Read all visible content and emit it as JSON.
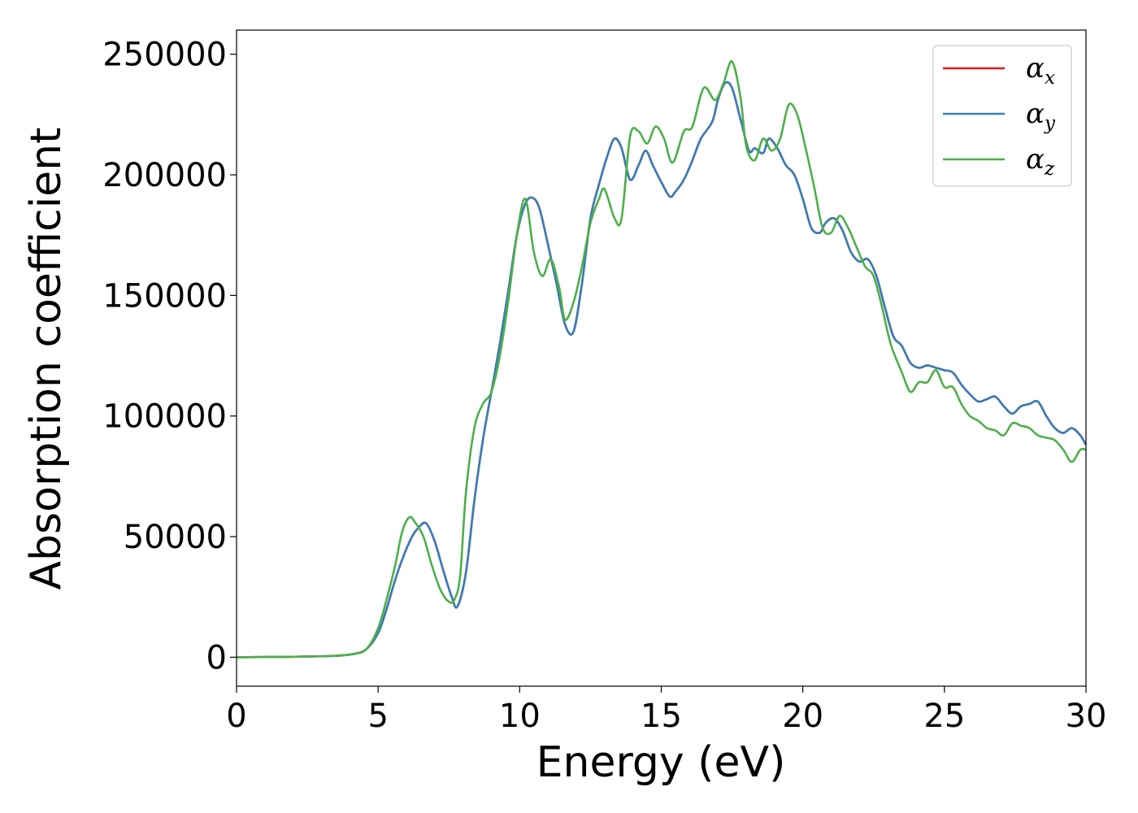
{
  "chart_data": {
    "type": "line",
    "xlabel": "Energy (eV)",
    "ylabel": "Absorption coefficient",
    "xlim": [
      0,
      30
    ],
    "ylim": [
      -12000,
      260000
    ],
    "x_ticks": [
      "0",
      "5",
      "10",
      "15",
      "20",
      "25",
      "30"
    ],
    "y_ticks": [
      "0",
      "50000",
      "100000",
      "150000",
      "200000",
      "250000"
    ],
    "grid": false,
    "legend_position": "top-right",
    "legend": [
      {
        "symbol": "α",
        "sub": "x",
        "color": "#e41a1c"
      },
      {
        "symbol": "α",
        "sub": "y",
        "color": "#377eb8"
      },
      {
        "symbol": "α",
        "sub": "z",
        "color": "#4daf4a"
      }
    ],
    "series": [
      {
        "name": "αx",
        "color": "#e41a1c",
        "x": [
          0,
          2,
          3.5,
          4.2,
          4.6,
          5.0,
          5.3,
          5.6,
          5.9,
          6.2,
          6.45,
          6.7,
          7.0,
          7.3,
          7.6,
          7.8,
          8.1,
          8.4,
          8.7,
          9.0,
          9.3,
          9.6,
          9.9,
          10.2,
          10.45,
          10.7,
          11.0,
          11.3,
          11.6,
          11.9,
          12.2,
          12.5,
          12.8,
          13.1,
          13.35,
          13.6,
          13.9,
          14.2,
          14.45,
          14.7,
          15.0,
          15.3,
          15.5,
          15.8,
          16.1,
          16.4,
          16.8,
          17.0,
          17.25,
          17.5,
          17.8,
          18.1,
          18.3,
          18.6,
          18.8,
          19.1,
          19.4,
          19.7,
          20.0,
          20.3,
          20.6,
          20.8,
          21.1,
          21.4,
          21.7,
          22.0,
          22.3,
          22.6,
          22.9,
          23.2,
          23.5,
          23.8,
          24.1,
          24.4,
          24.7,
          25.0,
          25.3,
          25.6,
          25.9,
          26.2,
          26.5,
          26.8,
          27.1,
          27.4,
          27.7,
          28.0,
          28.3,
          28.6,
          28.9,
          29.2,
          29.5,
          29.8,
          30.0
        ],
        "y": [
          0,
          200,
          600,
          1500,
          3500,
          10000,
          20000,
          32000,
          42000,
          50000,
          54000,
          55500,
          48000,
          36000,
          25000,
          21000,
          35000,
          65000,
          90000,
          110000,
          130000,
          152000,
          175000,
          188000,
          190500,
          186000,
          171000,
          155000,
          138000,
          135000,
          155000,
          182000,
          196000,
          208000,
          215000,
          211000,
          198000,
          204000,
          210000,
          204000,
          197000,
          191000,
          193000,
          198000,
          206000,
          215000,
          222000,
          231000,
          238000,
          236000,
          223000,
          210000,
          211000,
          209000,
          215000,
          211000,
          204000,
          200000,
          190000,
          178000,
          176000,
          180000,
          182000,
          177000,
          168000,
          164000,
          165000,
          158000,
          145000,
          133000,
          129000,
          122000,
          120000,
          121000,
          120000,
          119000,
          118000,
          113000,
          109000,
          106000,
          107000,
          108000,
          104000,
          101000,
          104000,
          105000,
          106000,
          100000,
          95000,
          93000,
          95000,
          92000,
          88000
        ]
      },
      {
        "name": "αy",
        "color": "#377eb8",
        "x": [
          0,
          2,
          3.5,
          4.2,
          4.6,
          5.0,
          5.3,
          5.6,
          5.9,
          6.2,
          6.45,
          6.7,
          7.0,
          7.3,
          7.6,
          7.8,
          8.1,
          8.4,
          8.7,
          9.0,
          9.3,
          9.6,
          9.9,
          10.2,
          10.45,
          10.7,
          11.0,
          11.3,
          11.6,
          11.9,
          12.2,
          12.5,
          12.8,
          13.1,
          13.35,
          13.6,
          13.9,
          14.2,
          14.45,
          14.7,
          15.0,
          15.3,
          15.5,
          15.8,
          16.1,
          16.4,
          16.8,
          17.0,
          17.25,
          17.5,
          17.8,
          18.1,
          18.3,
          18.6,
          18.8,
          19.1,
          19.4,
          19.7,
          20.0,
          20.3,
          20.6,
          20.8,
          21.1,
          21.4,
          21.7,
          22.0,
          22.3,
          22.6,
          22.9,
          23.2,
          23.5,
          23.8,
          24.1,
          24.4,
          24.7,
          25.0,
          25.3,
          25.6,
          25.9,
          26.2,
          26.5,
          26.8,
          27.1,
          27.4,
          27.7,
          28.0,
          28.3,
          28.6,
          28.9,
          29.2,
          29.5,
          29.8,
          30.0
        ],
        "y": [
          0,
          200,
          600,
          1500,
          3500,
          10000,
          20000,
          32000,
          42000,
          50000,
          54000,
          55500,
          48000,
          36000,
          25000,
          21000,
          35000,
          65000,
          90000,
          110000,
          130000,
          152000,
          175000,
          188000,
          190500,
          186000,
          171000,
          155000,
          138000,
          135000,
          155000,
          182000,
          196000,
          208000,
          215000,
          211000,
          198000,
          204000,
          210000,
          204000,
          197000,
          191000,
          193000,
          198000,
          206000,
          215000,
          222000,
          231000,
          238000,
          236000,
          223000,
          210000,
          211000,
          209000,
          215000,
          211000,
          204000,
          200000,
          190000,
          178000,
          176000,
          180000,
          182000,
          177000,
          168000,
          164000,
          165000,
          158000,
          145000,
          133000,
          129000,
          122000,
          120000,
          121000,
          120000,
          119000,
          118000,
          113000,
          109000,
          106000,
          107000,
          108000,
          104000,
          101000,
          104000,
          105000,
          106000,
          100000,
          95000,
          93000,
          95000,
          92000,
          88000
        ]
      },
      {
        "name": "αz",
        "color": "#4daf4a",
        "x": [
          0,
          2,
          3.5,
          4.2,
          4.6,
          5.0,
          5.3,
          5.6,
          5.85,
          6.1,
          6.3,
          6.6,
          6.9,
          7.2,
          7.5,
          7.7,
          7.9,
          8.1,
          8.4,
          8.7,
          9.0,
          9.3,
          9.6,
          9.9,
          10.2,
          10.5,
          10.8,
          11.1,
          11.4,
          11.6,
          11.9,
          12.2,
          12.5,
          12.8,
          13.0,
          13.35,
          13.6,
          13.9,
          14.2,
          14.5,
          14.8,
          15.1,
          15.4,
          15.8,
          16.1,
          16.5,
          16.9,
          17.2,
          17.5,
          17.8,
          18.0,
          18.3,
          18.6,
          18.9,
          19.2,
          19.5,
          19.8,
          20.1,
          20.4,
          20.7,
          21.0,
          21.3,
          21.6,
          21.9,
          22.2,
          22.5,
          22.8,
          23.1,
          23.5,
          23.8,
          24.1,
          24.4,
          24.7,
          25.0,
          25.3,
          25.6,
          25.9,
          26.2,
          26.5,
          26.8,
          27.1,
          27.4,
          27.7,
          28.0,
          28.3,
          28.6,
          28.9,
          29.2,
          29.5,
          29.8,
          30.0
        ],
        "y": [
          0,
          200,
          600,
          1500,
          3500,
          12000,
          24000,
          38000,
          52000,
          58000,
          56000,
          50000,
          38000,
          28000,
          23000,
          24000,
          34000,
          68000,
          95000,
          105000,
          110000,
          125000,
          148000,
          175000,
          190000,
          168000,
          158000,
          165000,
          153000,
          140000,
          147000,
          162000,
          180000,
          190000,
          194000,
          182000,
          182000,
          216000,
          218000,
          213000,
          220000,
          215000,
          205000,
          218000,
          220000,
          236000,
          231000,
          238000,
          247000,
          232000,
          212000,
          206000,
          215000,
          210000,
          215000,
          229000,
          225000,
          211000,
          195000,
          178000,
          176000,
          183000,
          178000,
          170000,
          162000,
          158000,
          145000,
          130000,
          118000,
          110000,
          114000,
          114000,
          119000,
          112000,
          112000,
          105000,
          100000,
          98000,
          95000,
          94000,
          92000,
          97000,
          96000,
          95000,
          92000,
          91000,
          90000,
          86000,
          81000,
          86000,
          86000
        ]
      }
    ]
  }
}
